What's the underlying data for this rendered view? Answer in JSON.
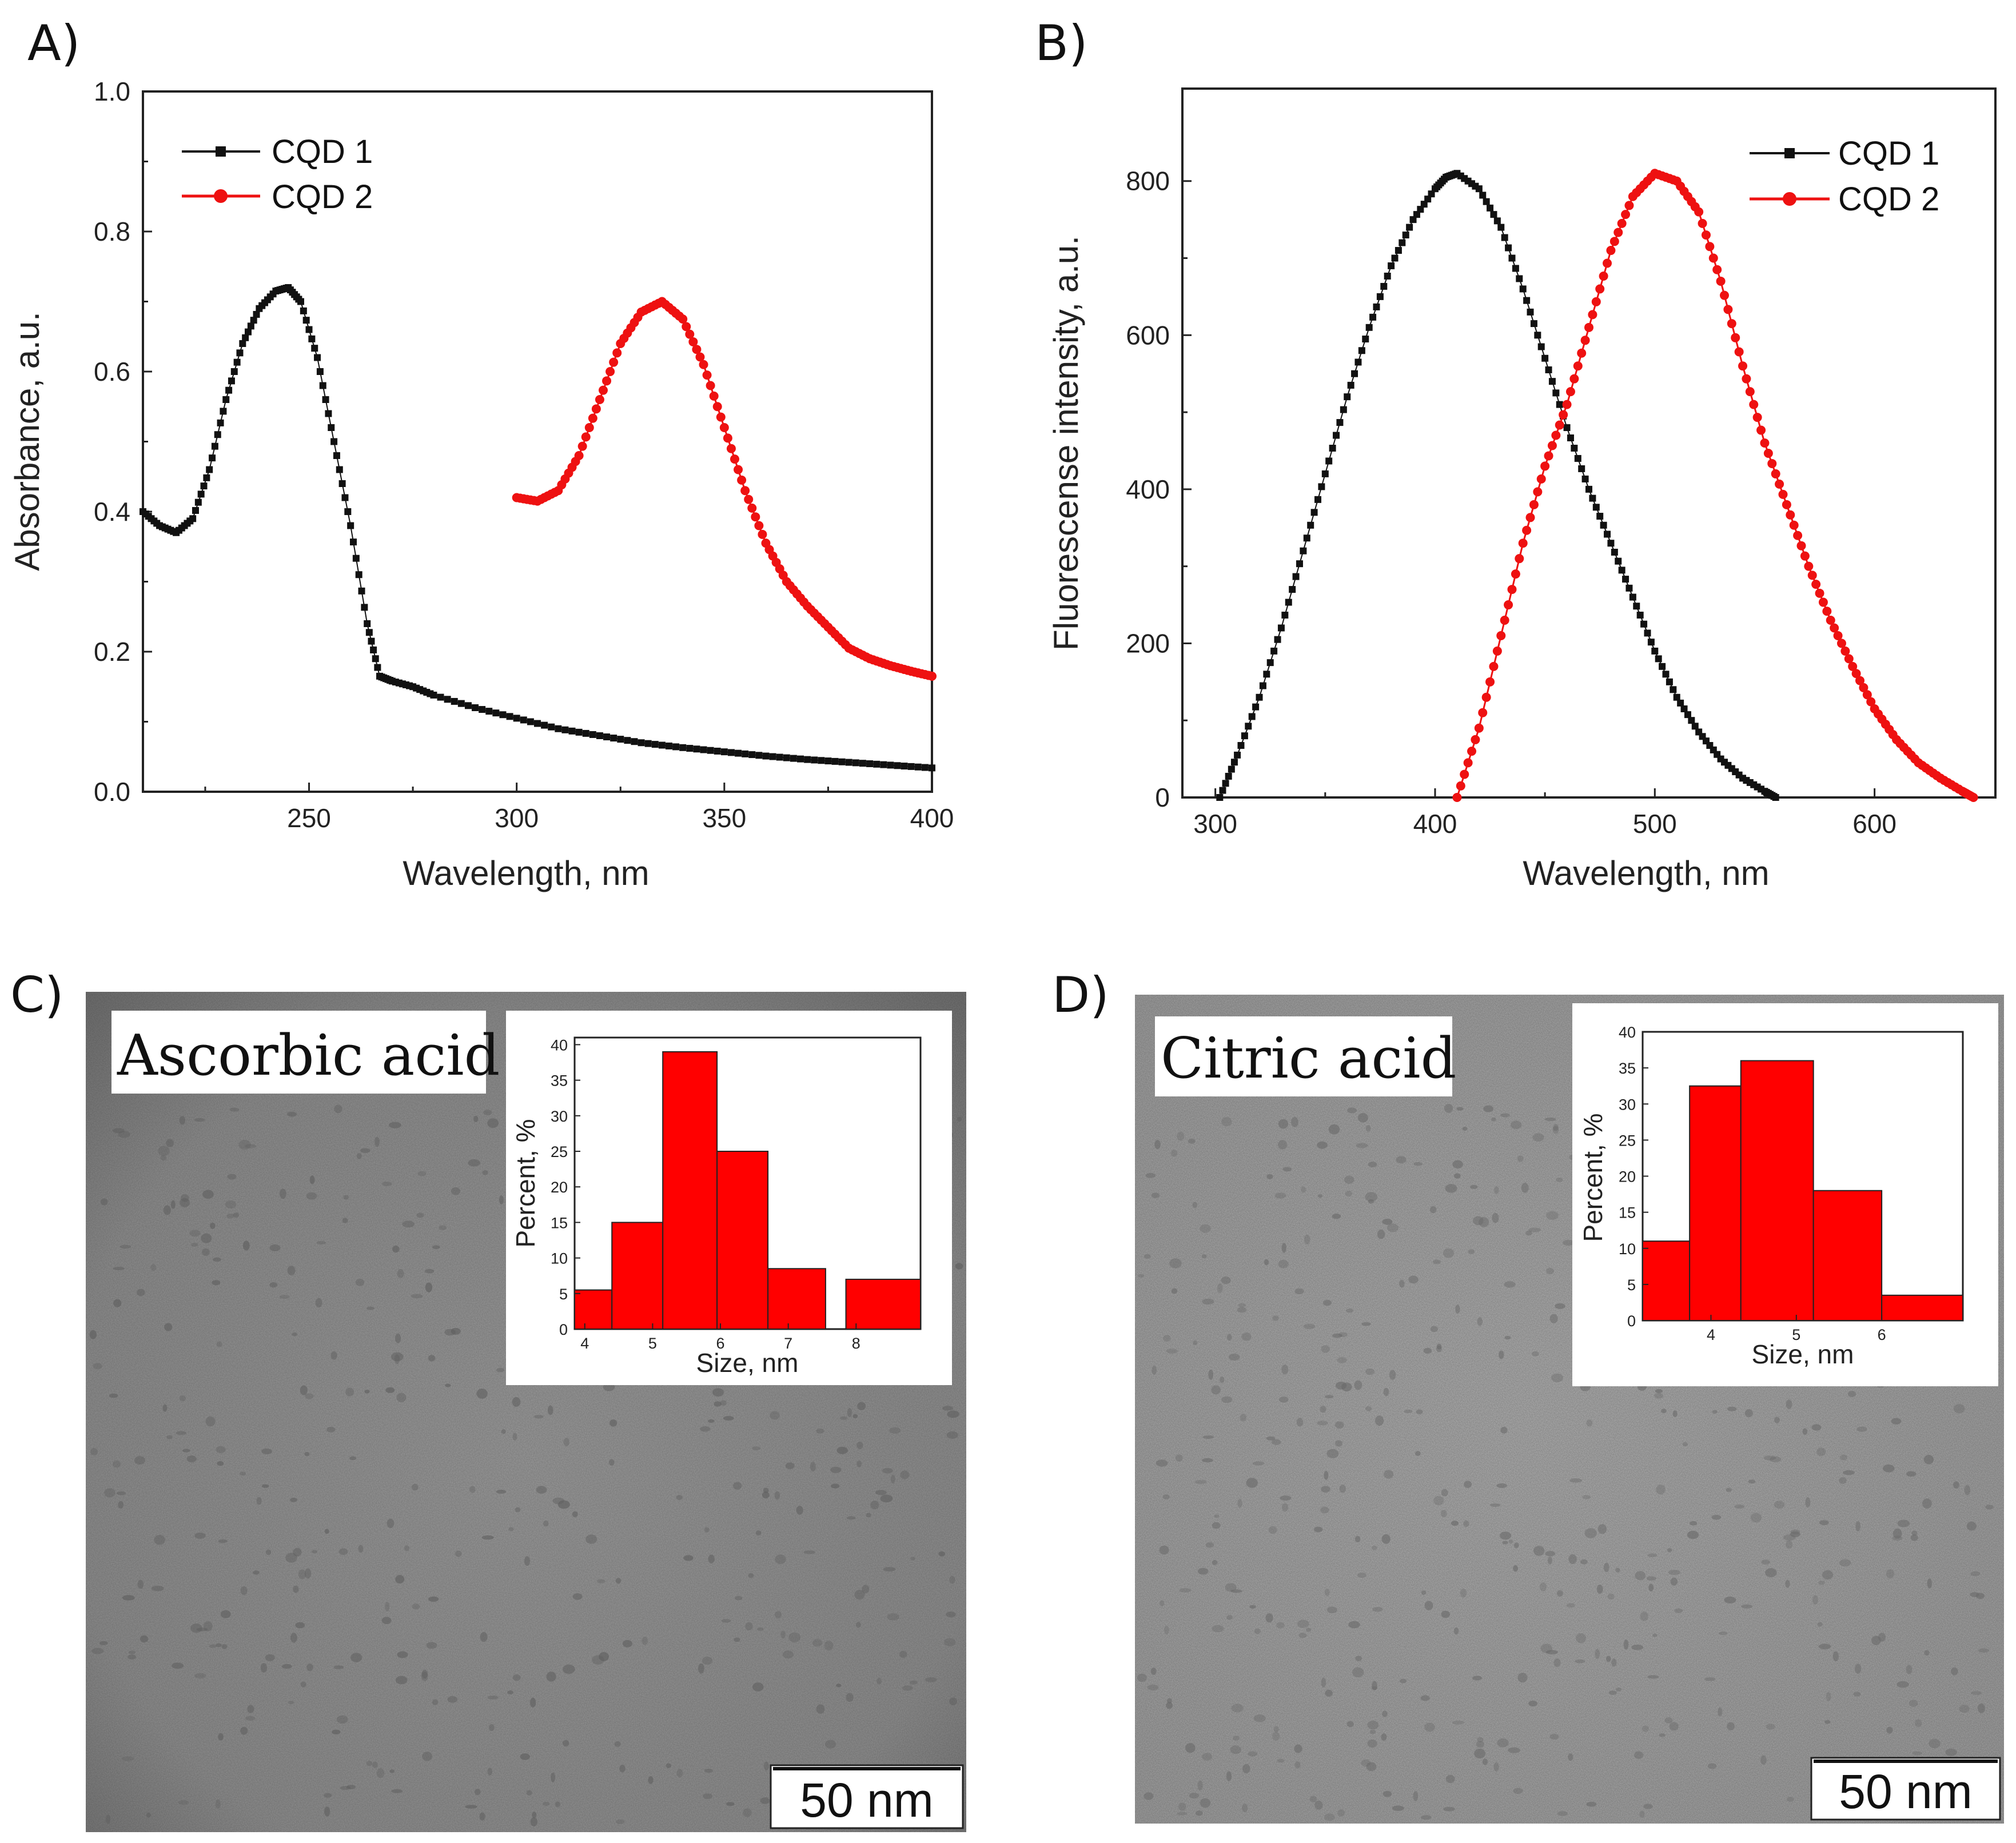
{
  "panels": [
    {
      "label": "A)"
    },
    {
      "label": "B)"
    },
    {
      "label": "C)"
    },
    {
      "label": "D)"
    }
  ],
  "colors": {
    "cqd1": "#111111",
    "cqd2": "#ee1111",
    "bar_fill": "#ff0000",
    "bar_edge": "#222222"
  },
  "chart_data": [
    {
      "panel": "A)",
      "type": "scatter",
      "xlabel": "Wavelength, nm",
      "ylabel": "Absorbance, a.u.",
      "xlim": [
        210,
        400
      ],
      "ylim": [
        0.0,
        1.0
      ],
      "xticks": [
        250,
        300,
        350,
        400
      ],
      "yticks": [
        0.0,
        0.2,
        0.4,
        0.6,
        0.8,
        1.0
      ],
      "ytick_labels": [
        "0.0",
        "0.2",
        "0.4",
        "0.6",
        "0.8",
        "1.0"
      ],
      "legend_position": "top-left",
      "series": [
        {
          "name": "CQD 1",
          "marker": "square",
          "x": [
            210,
            214,
            218,
            222,
            226,
            230,
            234,
            238,
            242,
            245,
            248,
            252,
            256,
            260,
            264,
            267,
            270,
            275,
            280,
            290,
            300,
            310,
            320,
            330,
            340,
            350,
            360,
            370,
            380,
            390,
            400
          ],
          "y": [
            0.4,
            0.38,
            0.37,
            0.39,
            0.46,
            0.56,
            0.64,
            0.69,
            0.715,
            0.72,
            0.7,
            0.62,
            0.5,
            0.38,
            0.24,
            0.165,
            0.158,
            0.15,
            0.138,
            0.12,
            0.105,
            0.09,
            0.08,
            0.07,
            0.063,
            0.057,
            0.051,
            0.046,
            0.042,
            0.038,
            0.034
          ]
        },
        {
          "name": "CQD 2",
          "marker": "circle",
          "x": [
            300,
            305,
            310,
            315,
            320,
            325,
            330,
            335,
            340,
            345,
            350,
            355,
            360,
            365,
            370,
            375,
            380,
            385,
            390,
            395,
            400
          ],
          "y": [
            0.42,
            0.415,
            0.43,
            0.48,
            0.56,
            0.64,
            0.685,
            0.7,
            0.675,
            0.61,
            0.52,
            0.43,
            0.355,
            0.3,
            0.265,
            0.235,
            0.205,
            0.19,
            0.18,
            0.172,
            0.165
          ]
        }
      ]
    },
    {
      "panel": "B)",
      "type": "scatter",
      "xlabel": "Wavelength, nm",
      "ylabel": "Fluorescense intensity, a.u.",
      "xlim": [
        285,
        655
      ],
      "ylim": [
        0,
        920
      ],
      "xticks": [
        300,
        400,
        500,
        600
      ],
      "yticks": [
        0,
        200,
        400,
        600,
        800
      ],
      "legend_position": "top-right",
      "series": [
        {
          "name": "CQD 1",
          "marker": "square",
          "x": [
            302,
            310,
            320,
            330,
            340,
            350,
            360,
            370,
            380,
            390,
            400,
            405,
            410,
            420,
            430,
            440,
            450,
            460,
            470,
            480,
            490,
            500,
            510,
            520,
            530,
            540,
            550,
            555
          ],
          "y": [
            0,
            55,
            130,
            220,
            320,
            420,
            520,
            610,
            690,
            750,
            790,
            805,
            810,
            790,
            740,
            660,
            570,
            480,
            400,
            330,
            260,
            190,
            130,
            85,
            50,
            25,
            8,
            0
          ]
        },
        {
          "name": "CQD 2",
          "marker": "circle",
          "x": [
            410,
            420,
            430,
            440,
            450,
            460,
            470,
            480,
            490,
            500,
            510,
            520,
            530,
            540,
            550,
            560,
            570,
            580,
            590,
            600,
            610,
            620,
            630,
            640,
            645
          ],
          "y": [
            0,
            90,
            210,
            330,
            430,
            510,
            610,
            710,
            780,
            810,
            800,
            760,
            670,
            560,
            460,
            380,
            300,
            230,
            170,
            115,
            75,
            45,
            25,
            8,
            0
          ]
        }
      ]
    },
    {
      "panel": "C)",
      "type": "bar",
      "xlabel": "Size, nm",
      "ylabel": "Percent, %",
      "xlim": [
        3.85,
        8.95
      ],
      "ylim": [
        0,
        41
      ],
      "xticks": [
        4,
        5,
        6,
        7,
        8
      ],
      "yticks": [
        0,
        5,
        10,
        15,
        20,
        25,
        30,
        35,
        40
      ],
      "bins": [
        {
          "from": 3.85,
          "to": 4.4,
          "value": 5.5
        },
        {
          "from": 4.4,
          "to": 5.15,
          "value": 15
        },
        {
          "from": 5.15,
          "to": 5.95,
          "value": 39
        },
        {
          "from": 5.95,
          "to": 6.7,
          "value": 25
        },
        {
          "from": 6.7,
          "to": 7.55,
          "value": 8.5
        },
        {
          "from": 7.85,
          "to": 8.95,
          "value": 7
        }
      ]
    },
    {
      "panel": "D)",
      "type": "bar",
      "xlabel": "Size, nm",
      "ylabel": "Percent, %",
      "xlim": [
        3.2,
        6.95
      ],
      "ylim": [
        0,
        40
      ],
      "xticks": [
        4,
        5,
        6
      ],
      "yticks": [
        0,
        5,
        10,
        15,
        20,
        25,
        30,
        35,
        40
      ],
      "bins": [
        {
          "from": 3.2,
          "to": 3.75,
          "value": 11
        },
        {
          "from": 3.75,
          "to": 4.35,
          "value": 32.5
        },
        {
          "from": 4.35,
          "to": 5.2,
          "value": 36
        },
        {
          "from": 5.2,
          "to": 6.0,
          "value": 18
        },
        {
          "from": 6.0,
          "to": 6.95,
          "value": 3.5
        }
      ]
    }
  ],
  "micrographs": [
    {
      "panel": "C)",
      "label": "Ascorbic acid",
      "scale_bar": "50 nm"
    },
    {
      "panel": "D)",
      "label": "Citric acid",
      "scale_bar": "50 nm"
    }
  ]
}
